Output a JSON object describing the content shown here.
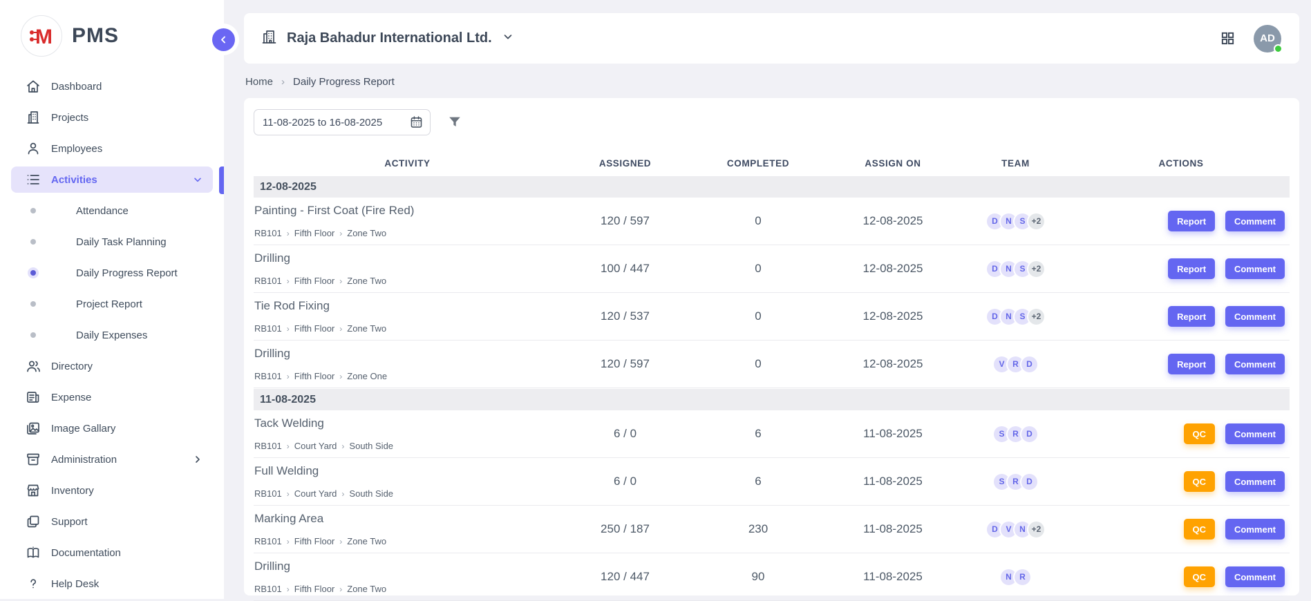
{
  "app": {
    "name": "PMS"
  },
  "header": {
    "company": "Raja Bahadur International Ltd.",
    "user_initials": "AD"
  },
  "breadcrumb": {
    "home": "Home",
    "current": "Daily Progress Report"
  },
  "filters": {
    "date_range": "11-08-2025 to 16-08-2025"
  },
  "sidebar": {
    "items": [
      {
        "label": "Dashboard",
        "icon": "home-icon"
      },
      {
        "label": "Projects",
        "icon": "building-icon"
      },
      {
        "label": "Employees",
        "icon": "person-icon"
      },
      {
        "label": "Activities",
        "icon": "list-icon",
        "active": true,
        "expanded": true,
        "children": [
          {
            "label": "Attendance",
            "active": false
          },
          {
            "label": "Daily Task Planning",
            "active": false
          },
          {
            "label": "Daily Progress Report",
            "active": true
          },
          {
            "label": "Project Report",
            "active": false
          },
          {
            "label": "Daily Expenses",
            "active": false
          }
        ]
      },
      {
        "label": "Directory",
        "icon": "people-icon"
      },
      {
        "label": "Expense",
        "icon": "receipt-icon"
      },
      {
        "label": "Image Gallary",
        "icon": "image-icon"
      },
      {
        "label": "Administration",
        "icon": "archive-icon",
        "has_submenu": true
      },
      {
        "label": "Inventory",
        "icon": "store-icon"
      },
      {
        "label": "Support",
        "icon": "layers-icon"
      },
      {
        "label": "Documentation",
        "icon": "book-icon"
      },
      {
        "label": "Help Desk",
        "icon": "help-icon"
      }
    ]
  },
  "table": {
    "columns": [
      "ACTIVITY",
      "ASSIGNED",
      "COMPLETED",
      "ASSIGN ON",
      "TEAM",
      "ACTIONS"
    ],
    "groups": [
      {
        "date": "12-08-2025",
        "rows": [
          {
            "activity": "Painting - First Coat (Fire Red)",
            "path": [
              "RB101",
              "Fifth Floor",
              "Zone Two"
            ],
            "assigned": "120 / 597",
            "completed": "0",
            "assign_on": "12-08-2025",
            "team": [
              "D",
              "N",
              "S",
              "+2"
            ],
            "actions": [
              {
                "label": "Report",
                "variant": "primary"
              },
              {
                "label": "Comment",
                "variant": "primary"
              }
            ]
          },
          {
            "activity": "Drilling",
            "path": [
              "RB101",
              "Fifth Floor",
              "Zone Two"
            ],
            "assigned": "100 / 447",
            "completed": "0",
            "assign_on": "12-08-2025",
            "team": [
              "D",
              "N",
              "S",
              "+2"
            ],
            "actions": [
              {
                "label": "Report",
                "variant": "primary"
              },
              {
                "label": "Comment",
                "variant": "primary"
              }
            ]
          },
          {
            "activity": "Tie Rod Fixing",
            "path": [
              "RB101",
              "Fifth Floor",
              "Zone Two"
            ],
            "assigned": "120 / 537",
            "completed": "0",
            "assign_on": "12-08-2025",
            "team": [
              "D",
              "N",
              "S",
              "+2"
            ],
            "actions": [
              {
                "label": "Report",
                "variant": "primary"
              },
              {
                "label": "Comment",
                "variant": "primary"
              }
            ]
          },
          {
            "activity": "Drilling",
            "path": [
              "RB101",
              "Fifth Floor",
              "Zone One"
            ],
            "assigned": "120 / 597",
            "completed": "0",
            "assign_on": "12-08-2025",
            "team": [
              "V",
              "R",
              "D"
            ],
            "actions": [
              {
                "label": "Report",
                "variant": "primary"
              },
              {
                "label": "Comment",
                "variant": "primary"
              }
            ]
          }
        ]
      },
      {
        "date": "11-08-2025",
        "rows": [
          {
            "activity": "Tack Welding",
            "path": [
              "RB101",
              "Court Yard",
              "South Side"
            ],
            "assigned": "6 / 0",
            "completed": "6",
            "assign_on": "11-08-2025",
            "team": [
              "S",
              "R",
              "D"
            ],
            "actions": [
              {
                "label": "QC",
                "variant": "warning"
              },
              {
                "label": "Comment",
                "variant": "primary"
              }
            ]
          },
          {
            "activity": "Full Welding",
            "path": [
              "RB101",
              "Court Yard",
              "South Side"
            ],
            "assigned": "6 / 0",
            "completed": "6",
            "assign_on": "11-08-2025",
            "team": [
              "S",
              "R",
              "D"
            ],
            "actions": [
              {
                "label": "QC",
                "variant": "warning"
              },
              {
                "label": "Comment",
                "variant": "primary"
              }
            ]
          },
          {
            "activity": "Marking Area",
            "path": [
              "RB101",
              "Fifth Floor",
              "Zone Two"
            ],
            "assigned": "250 / 187",
            "completed": "230",
            "assign_on": "11-08-2025",
            "team": [
              "D",
              "V",
              "N",
              "+2"
            ],
            "actions": [
              {
                "label": "QC",
                "variant": "warning"
              },
              {
                "label": "Comment",
                "variant": "primary"
              }
            ]
          },
          {
            "activity": "Drilling",
            "path": [
              "RB101",
              "Fifth Floor",
              "Zone Two"
            ],
            "assigned": "120 / 447",
            "completed": "90",
            "assign_on": "11-08-2025",
            "team": [
              "N",
              "R"
            ],
            "actions": [
              {
                "label": "QC",
                "variant": "warning"
              },
              {
                "label": "Comment",
                "variant": "primary"
              }
            ]
          }
        ]
      }
    ]
  },
  "colors": {
    "accent": "#6466f1",
    "qc_orange": "#ffa200",
    "logo_red": "#d92c2c",
    "avatar_bg": "#8a99aa",
    "online_green": "#3ecb3e",
    "badge_bg": "#e3e1fb",
    "badge_more_bg": "#e4e7ea",
    "page_bg": "#f1f1f6"
  }
}
